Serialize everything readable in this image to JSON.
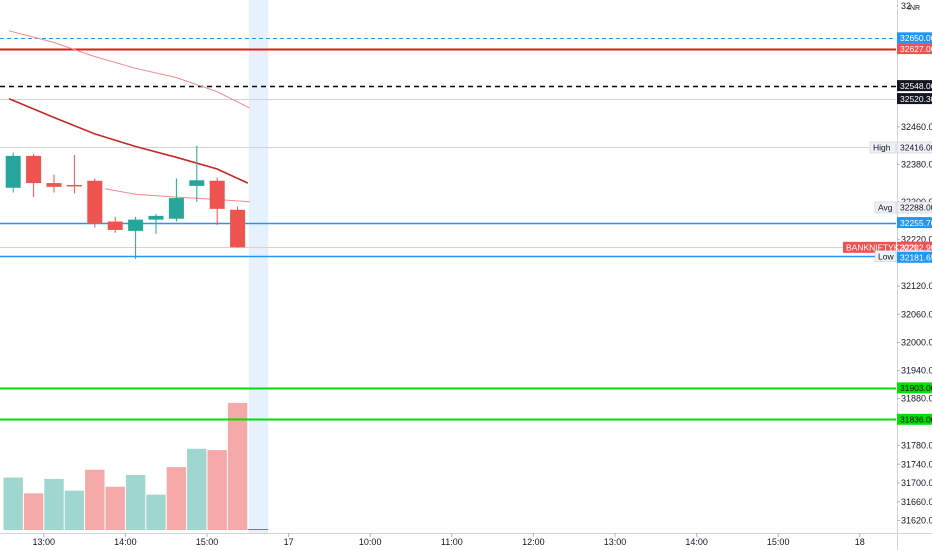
{
  "app": {
    "currency_label": "INR",
    "scale_top_partial": "32",
    "symbol": "BANKNIFTYK2021"
  },
  "colors": {
    "bull": "#26a69a",
    "bear": "#ef5350",
    "vol_bull": "#9fd6cf",
    "vol_bear": "#f5a9a8",
    "blue_line": "#2196f3",
    "red_line": "#e31b1b",
    "green_line": "#00e000",
    "black_dash": "#000000",
    "ma_dark": "#c62828",
    "ma_light": "#f08a8a",
    "highlight": "#e6f1fd"
  },
  "chart_data": {
    "type": "candlestick",
    "y_axis": {
      "ticks": [
        31620,
        31660,
        31700,
        31740,
        31780,
        31880,
        31940,
        32000,
        32060,
        32120,
        32220,
        32300,
        32380,
        32460
      ],
      "ylim": [
        31604,
        32720
      ],
      "currency": "INR"
    },
    "x_axis": {
      "labels": [
        "13:00",
        "14:00",
        "15:00",
        "17",
        "10:00",
        "11:00",
        "12:00",
        "13:00",
        "14:00",
        "15:00",
        "18"
      ],
      "label_bar_index": [
        1.5,
        5.5,
        9.5,
        13.5,
        17.5,
        21.5,
        25.5,
        29.5,
        33.5,
        37.5,
        41.5
      ]
    },
    "candles": [
      {
        "o": 32330,
        "h": 32405,
        "l": 32320,
        "c": 32398
      },
      {
        "o": 32398,
        "h": 32402,
        "l": 32310,
        "c": 32340
      },
      {
        "o": 32340,
        "h": 32358,
        "l": 32320,
        "c": 32332
      },
      {
        "o": 32336,
        "h": 32400,
        "l": 32318,
        "c": 32334
      },
      {
        "o": 32345,
        "h": 32350,
        "l": 32245,
        "c": 32255
      },
      {
        "o": 32258,
        "h": 32268,
        "l": 32234,
        "c": 32240
      },
      {
        "o": 32238,
        "h": 32268,
        "l": 32178,
        "c": 32262
      },
      {
        "o": 32262,
        "h": 32274,
        "l": 32232,
        "c": 32270
      },
      {
        "o": 32264,
        "h": 32350,
        "l": 32258,
        "c": 32308
      },
      {
        "o": 32334,
        "h": 32420,
        "l": 32300,
        "c": 32346
      },
      {
        "o": 32345,
        "h": 32352,
        "l": 32250,
        "c": 32285
      },
      {
        "o": 32283,
        "h": 32290,
        "l": 32202,
        "c": 32203
      }
    ],
    "volume": [
      {
        "v": 40,
        "dir": "bull"
      },
      {
        "v": 28,
        "dir": "bear"
      },
      {
        "v": 39,
        "dir": "bull"
      },
      {
        "v": 30,
        "dir": "bull"
      },
      {
        "v": 46,
        "dir": "bear"
      },
      {
        "v": 33,
        "dir": "bear"
      },
      {
        "v": 42,
        "dir": "bull"
      },
      {
        "v": 27,
        "dir": "bull"
      },
      {
        "v": 48,
        "dir": "bear"
      },
      {
        "v": 62,
        "dir": "bull"
      },
      {
        "v": 61,
        "dir": "bear"
      },
      {
        "v": 97,
        "dir": "bear"
      }
    ],
    "volume_max": 100,
    "highlighted_bar_index": 12,
    "moving_averages": [
      {
        "style": "dark",
        "points": [
          [
            -0.2,
            32520
          ],
          [
            2,
            32480
          ],
          [
            4,
            32445
          ],
          [
            6,
            32418
          ],
          [
            8,
            32395
          ],
          [
            10,
            32370
          ],
          [
            11.5,
            32340
          ]
        ]
      },
      {
        "style": "light",
        "points": [
          [
            -0.2,
            32665
          ],
          [
            2,
            32640
          ],
          [
            4,
            32610
          ],
          [
            6,
            32585
          ],
          [
            8,
            32565
          ],
          [
            10,
            32535
          ],
          [
            11.6,
            32500
          ]
        ]
      },
      {
        "style": "light",
        "points": [
          [
            4.5,
            32328
          ],
          [
            6,
            32316
          ],
          [
            8,
            32310
          ],
          [
            10,
            32305
          ],
          [
            11.6,
            32300
          ]
        ]
      }
    ],
    "level_lines": [
      {
        "price": 32650.0,
        "label": "32650.00",
        "style": "dash-blue",
        "tag": "blue"
      },
      {
        "price": 32627.0,
        "label": "32627.00",
        "style": "solid-red",
        "tag": "red"
      },
      {
        "price": 32548.0,
        "label": "32548.00",
        "style": "dash-black",
        "tag": "black"
      },
      {
        "price": 32520.3,
        "label": "32520.30",
        "style": "thin-gray",
        "tag": "black"
      },
      {
        "price": 32416.0,
        "label": "32416.00",
        "style": "thin-gray",
        "tag": "light",
        "name": "High"
      },
      {
        "price": 32288.0,
        "label": "32288.00",
        "style": "none",
        "tag": "light",
        "name": "Avg"
      },
      {
        "price": 32255.7,
        "label": "32255.70",
        "style": "solid-blue",
        "tag": "blue"
      },
      {
        "price": 32202.9,
        "label": "32202.90",
        "style": "thin-pink",
        "tag": "red",
        "name": "BANKNIFTYK2021"
      },
      {
        "price": 32184.0,
        "label": "32184.00",
        "style": "solid-blue",
        "tag": "light",
        "name": "Low"
      },
      {
        "price": 32181.65,
        "label": "32181.65",
        "style": "none",
        "tag": "blue"
      },
      {
        "price": 31903.0,
        "label": "31903.00",
        "style": "solid-green",
        "tag": "green"
      },
      {
        "price": 31836.0,
        "label": "31836.00",
        "style": "solid-green",
        "tag": "green"
      }
    ]
  }
}
